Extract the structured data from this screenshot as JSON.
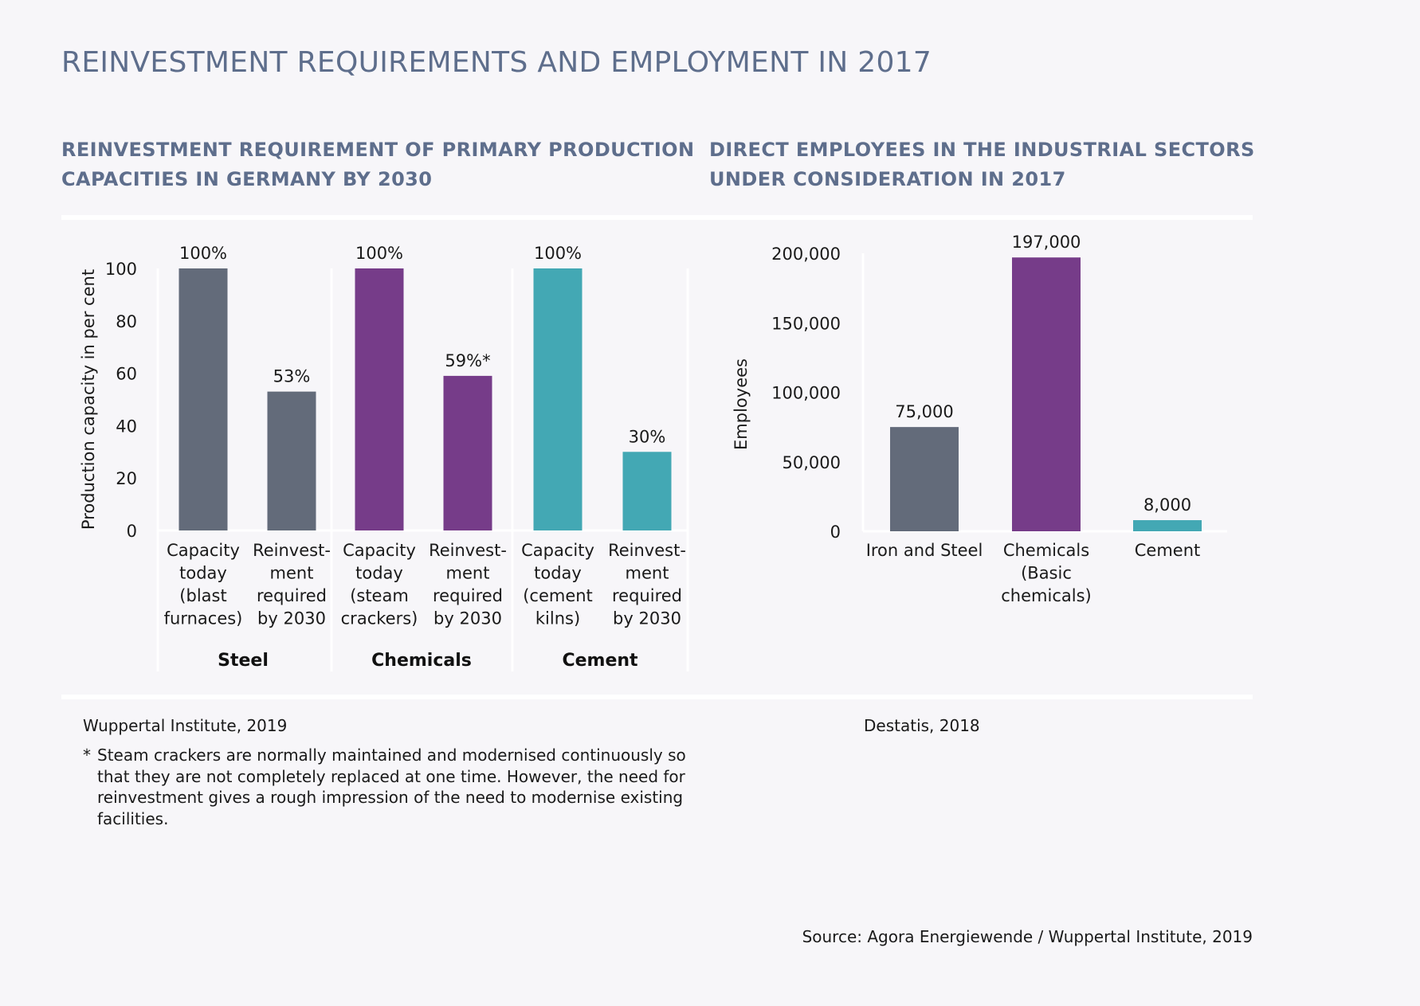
{
  "title": "REINVESTMENT REQUIREMENTS AND EMPLOYMENT IN 2017",
  "left_subtitle": [
    "REINVESTMENT REQUIREMENT OF PRIMARY PRODUCTION",
    "CAPACITIES IN GERMANY BY 2030"
  ],
  "right_subtitle": [
    "DIRECT EMPLOYEES IN THE INDUSTRIAL SECTORS",
    "UNDER CONSIDERATION IN 2017"
  ],
  "left_source": "Wuppertal Institute, 2019",
  "right_source": "Destatis, 2018",
  "footnote_star": "*",
  "footnote_lines": [
    "Steam crackers are normally maintained and modernised continuously so",
    "that they are not completely replaced at one time. However, the need for",
    "reinvestment gives a rough impression of the need to modernise existing",
    "facilities."
  ],
  "source": "Source: Agora Energiewende / Wuppertal Institute, 2019",
  "colors": {
    "steel": "#636b7a",
    "chemicals": "#763c89",
    "cement": "#43a8b4",
    "heading": "#5e6e8c"
  },
  "chart_data": [
    {
      "type": "bar",
      "ylabel": "Production capacity in per cent",
      "ylim": [
        0,
        100
      ],
      "yticks": [
        "0",
        "20",
        "40",
        "60",
        "80",
        "100"
      ],
      "groups": [
        "Steel",
        "Chemicals",
        "Cement"
      ],
      "categories": [
        [
          "Capacity",
          "today",
          "(blast",
          "furnaces)"
        ],
        [
          "Reinvest-",
          "ment",
          "required",
          "by 2030"
        ],
        [
          "Capacity",
          "today",
          "(steam",
          "crackers)"
        ],
        [
          "Reinvest-",
          "ment",
          "required",
          "by 2030"
        ],
        [
          "Capacity",
          "today",
          "(cement",
          "kilns)"
        ],
        [
          "Reinvest-",
          "ment",
          "required",
          "by 2030"
        ]
      ],
      "values": [
        100,
        53,
        100,
        59,
        100,
        30
      ],
      "data_labels": [
        "100%",
        "53%",
        "100%",
        "59%*",
        "100%",
        "30%"
      ],
      "bar_colors": [
        "steel",
        "steel",
        "chemicals",
        "chemicals",
        "cement",
        "cement"
      ]
    },
    {
      "type": "bar",
      "ylabel": "Employees",
      "ylim": [
        0,
        200000
      ],
      "yticks": [
        "0",
        "50,000",
        "100,000",
        "150,000",
        "200,000"
      ],
      "categories": [
        [
          "Iron and Steel"
        ],
        [
          "Chemicals",
          "(Basic",
          "chemicals)"
        ],
        [
          "Cement"
        ]
      ],
      "values": [
        75000,
        197000,
        8000
      ],
      "data_labels": [
        "75,000",
        "197,000",
        "8,000"
      ],
      "bar_colors": [
        "steel",
        "chemicals",
        "cement"
      ]
    }
  ]
}
